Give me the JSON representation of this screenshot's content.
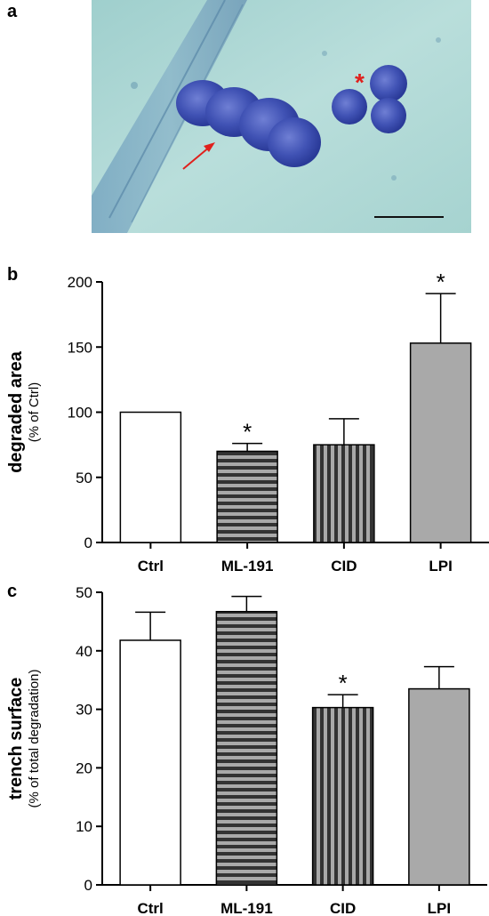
{
  "panels": {
    "a": {
      "letter": "a"
    },
    "b": {
      "letter": "b"
    },
    "c": {
      "letter": "c"
    }
  },
  "micrograph": {
    "annotations": {
      "asterisk": "*",
      "asterisk_color": "#e0201c",
      "arrow_color": "#e0201c"
    },
    "colors": {
      "background": "#a8d4d2",
      "cells": "#3d4fb0",
      "scale_bar": "#111111"
    },
    "icons": [
      "red-arrow",
      "red-asterisk",
      "scale-bar"
    ]
  },
  "chart_data": [
    {
      "type": "bar",
      "panel": "b",
      "categories": [
        "Ctrl",
        "ML-191",
        "CID",
        "LPI"
      ],
      "values": [
        100,
        70,
        75,
        153
      ],
      "errors": [
        0,
        6,
        20,
        38
      ],
      "significance": [
        "",
        "*",
        "",
        "*"
      ],
      "patterns": [
        "white",
        "horizontal-stripes",
        "vertical-stripes",
        "solid-gray"
      ],
      "ylabel": "degraded area",
      "ylabel_sub": "(% of Ctrl)",
      "ylim": [
        0,
        200
      ],
      "yticks": [
        0,
        50,
        100,
        150,
        200
      ],
      "grid": false
    },
    {
      "type": "bar",
      "panel": "c",
      "categories": [
        "Ctrl",
        "ML-191",
        "CID",
        "LPI"
      ],
      "values": [
        41.8,
        46.7,
        30.3,
        33.5
      ],
      "errors": [
        4.8,
        2.6,
        2.2,
        3.8
      ],
      "significance": [
        "",
        "",
        "*",
        ""
      ],
      "patterns": [
        "white",
        "horizontal-stripes",
        "vertical-stripes",
        "solid-gray"
      ],
      "ylabel": "trench surface",
      "ylabel_sub": "(% of total degradation)",
      "ylim": [
        0,
        50
      ],
      "yticks": [
        0,
        10,
        20,
        30,
        40,
        50
      ],
      "grid": false
    }
  ]
}
